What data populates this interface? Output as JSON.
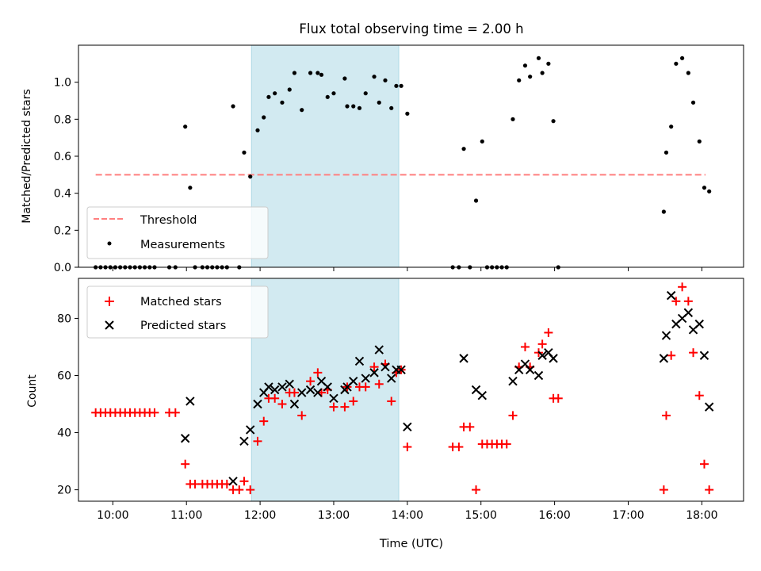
{
  "chart_data": [
    {
      "type": "scatter",
      "title": "Flux total observing time = 2.00 h",
      "xlabel": "",
      "ylabel": "Matched/Predicted stars",
      "ylim": [
        0,
        1.2
      ],
      "yticks": [
        "0.0",
        "0.2",
        "0.4",
        "0.6",
        "0.8",
        "1.0"
      ],
      "xlim": [
        "09:32",
        "18:34"
      ],
      "shaded_interval": [
        "11:53",
        "13:53"
      ],
      "grid": false,
      "legend_position": "lower-left",
      "threshold": {
        "name": "Threshold",
        "value": 0.5,
        "x_range": [
          "09:46",
          "18:03"
        ],
        "color": "#ff7f7f"
      },
      "series": [
        {
          "name": "Measurements",
          "color": "#000000",
          "points": [
            [
              "09:46",
              0
            ],
            [
              "09:50",
              0
            ],
            [
              "09:54",
              0
            ],
            [
              "09:58",
              0
            ],
            [
              "10:02",
              0
            ],
            [
              "10:06",
              0
            ],
            [
              "10:10",
              0
            ],
            [
              "10:14",
              0
            ],
            [
              "10:18",
              0
            ],
            [
              "10:22",
              0
            ],
            [
              "10:26",
              0
            ],
            [
              "10:30",
              0
            ],
            [
              "10:34",
              0
            ],
            [
              "10:46",
              0
            ],
            [
              "10:51",
              0
            ],
            [
              "10:59",
              0.76
            ],
            [
              "11:03",
              0.43
            ],
            [
              "11:07",
              0
            ],
            [
              "11:13",
              0
            ],
            [
              "11:17",
              0
            ],
            [
              "11:21",
              0
            ],
            [
              "11:25",
              0
            ],
            [
              "11:29",
              0
            ],
            [
              "11:33",
              0
            ],
            [
              "11:38",
              0.87
            ],
            [
              "11:43",
              0
            ],
            [
              "11:47",
              0.62
            ],
            [
              "11:52",
              0.49
            ],
            [
              "11:58",
              0.74
            ],
            [
              "12:03",
              0.81
            ],
            [
              "12:07",
              0.92
            ],
            [
              "12:12",
              0.94
            ],
            [
              "12:18",
              0.89
            ],
            [
              "12:24",
              0.96
            ],
            [
              "12:28",
              1.05
            ],
            [
              "12:34",
              0.85
            ],
            [
              "12:41",
              1.05
            ],
            [
              "12:47",
              1.05
            ],
            [
              "12:50",
              1.04
            ],
            [
              "12:55",
              0.92
            ],
            [
              "13:00",
              0.94
            ],
            [
              "13:09",
              1.02
            ],
            [
              "13:11",
              0.87
            ],
            [
              "13:16",
              0.87
            ],
            [
              "13:21",
              0.86
            ],
            [
              "13:26",
              0.94
            ],
            [
              "13:33",
              1.03
            ],
            [
              "13:37",
              0.89
            ],
            [
              "13:42",
              1.01
            ],
            [
              "13:47",
              0.86
            ],
            [
              "13:51",
              0.98
            ],
            [
              "13:55",
              0.98
            ],
            [
              "14:00",
              0.83
            ],
            [
              "14:37",
              0
            ],
            [
              "14:42",
              0
            ],
            [
              "14:46",
              0.64
            ],
            [
              "14:51",
              0
            ],
            [
              "14:56",
              0.36
            ],
            [
              "15:01",
              0.68
            ],
            [
              "15:05",
              0
            ],
            [
              "15:09",
              0
            ],
            [
              "15:13",
              0
            ],
            [
              "15:17",
              0
            ],
            [
              "15:21",
              0
            ],
            [
              "15:26",
              0.8
            ],
            [
              "15:31",
              1.01
            ],
            [
              "15:36",
              1.09
            ],
            [
              "15:40",
              1.03
            ],
            [
              "15:47",
              1.13
            ],
            [
              "15:50",
              1.05
            ],
            [
              "15:55",
              1.1
            ],
            [
              "15:59",
              0.79
            ],
            [
              "16:03",
              0
            ],
            [
              "17:29",
              0.3
            ],
            [
              "17:31",
              0.62
            ],
            [
              "17:35",
              0.76
            ],
            [
              "17:39",
              1.1
            ],
            [
              "17:44",
              1.13
            ],
            [
              "17:49",
              1.05
            ],
            [
              "17:53",
              0.89
            ],
            [
              "17:58",
              0.68
            ],
            [
              "18:02",
              0.43
            ],
            [
              "18:06",
              0.41
            ]
          ]
        }
      ],
      "legend": [
        {
          "label": "Threshold",
          "marker": "dashed-line",
          "color": "#ff7f7f"
        },
        {
          "label": "Measurements",
          "marker": "dot",
          "color": "#000000"
        }
      ]
    },
    {
      "type": "scatter",
      "title": "",
      "xlabel": "Time (UTC)",
      "ylabel": "Count",
      "ylim": [
        16,
        94
      ],
      "yticks": [
        "20",
        "40",
        "60",
        "80"
      ],
      "xticks": [
        "10:00",
        "11:00",
        "12:00",
        "13:00",
        "14:00",
        "15:00",
        "16:00",
        "17:00",
        "18:00"
      ],
      "xlim": [
        "09:32",
        "18:34"
      ],
      "shaded_interval": [
        "11:53",
        "13:53"
      ],
      "grid": false,
      "legend_position": "top-left",
      "series": [
        {
          "name": "Matched stars",
          "marker": "plus",
          "color": "#ff0000",
          "points": [
            [
              "09:46",
              47
            ],
            [
              "09:50",
              47
            ],
            [
              "09:54",
              47
            ],
            [
              "09:58",
              47
            ],
            [
              "10:02",
              47
            ],
            [
              "10:06",
              47
            ],
            [
              "10:10",
              47
            ],
            [
              "10:14",
              47
            ],
            [
              "10:18",
              47
            ],
            [
              "10:22",
              47
            ],
            [
              "10:26",
              47
            ],
            [
              "10:30",
              47
            ],
            [
              "10:34",
              47
            ],
            [
              "10:46",
              47
            ],
            [
              "10:51",
              47
            ],
            [
              "10:59",
              29
            ],
            [
              "11:03",
              22
            ],
            [
              "11:07",
              22
            ],
            [
              "11:13",
              22
            ],
            [
              "11:17",
              22
            ],
            [
              "11:21",
              22
            ],
            [
              "11:25",
              22
            ],
            [
              "11:29",
              22
            ],
            [
              "11:33",
              22
            ],
            [
              "11:38",
              20
            ],
            [
              "11:43",
              20
            ],
            [
              "11:47",
              23
            ],
            [
              "11:52",
              20
            ],
            [
              "11:58",
              37
            ],
            [
              "12:03",
              44
            ],
            [
              "12:07",
              52
            ],
            [
              "12:12",
              52
            ],
            [
              "12:18",
              50
            ],
            [
              "12:24",
              54
            ],
            [
              "12:28",
              54
            ],
            [
              "12:34",
              46
            ],
            [
              "12:41",
              58
            ],
            [
              "12:47",
              61
            ],
            [
              "12:50",
              54
            ],
            [
              "12:55",
              55
            ],
            [
              "13:00",
              49
            ],
            [
              "13:09",
              49
            ],
            [
              "13:11",
              56
            ],
            [
              "13:16",
              51
            ],
            [
              "13:21",
              56
            ],
            [
              "13:26",
              56
            ],
            [
              "13:33",
              63
            ],
            [
              "13:37",
              57
            ],
            [
              "13:42",
              64
            ],
            [
              "13:47",
              51
            ],
            [
              "13:51",
              61
            ],
            [
              "13:55",
              62
            ],
            [
              "14:00",
              35
            ],
            [
              "14:37",
              35
            ],
            [
              "14:42",
              35
            ],
            [
              "14:46",
              42
            ],
            [
              "14:51",
              42
            ],
            [
              "14:56",
              20
            ],
            [
              "15:01",
              36
            ],
            [
              "15:05",
              36
            ],
            [
              "15:09",
              36
            ],
            [
              "15:13",
              36
            ],
            [
              "15:17",
              36
            ],
            [
              "15:21",
              36
            ],
            [
              "15:26",
              46
            ],
            [
              "15:31",
              63
            ],
            [
              "15:36",
              70
            ],
            [
              "15:40",
              63
            ],
            [
              "15:47",
              68
            ],
            [
              "15:50",
              71
            ],
            [
              "15:55",
              75
            ],
            [
              "15:59",
              52
            ],
            [
              "16:03",
              52
            ],
            [
              "17:29",
              20
            ],
            [
              "17:31",
              46
            ],
            [
              "17:35",
              67
            ],
            [
              "17:39",
              86
            ],
            [
              "17:44",
              91
            ],
            [
              "17:49",
              86
            ],
            [
              "17:53",
              68
            ],
            [
              "17:58",
              53
            ],
            [
              "18:02",
              29
            ],
            [
              "18:06",
              20
            ]
          ]
        },
        {
          "name": "Predicted stars",
          "marker": "x",
          "color": "#000000",
          "points": [
            [
              "10:59",
              38
            ],
            [
              "11:03",
              51
            ],
            [
              "11:38",
              23
            ],
            [
              "11:47",
              37
            ],
            [
              "11:52",
              41
            ],
            [
              "11:58",
              50
            ],
            [
              "12:03",
              54
            ],
            [
              "12:07",
              56
            ],
            [
              "12:12",
              55
            ],
            [
              "12:18",
              56
            ],
            [
              "12:24",
              57
            ],
            [
              "12:28",
              50
            ],
            [
              "12:34",
              54
            ],
            [
              "12:41",
              55
            ],
            [
              "12:47",
              54
            ],
            [
              "12:50",
              58
            ],
            [
              "12:55",
              56
            ],
            [
              "13:00",
              52
            ],
            [
              "13:09",
              55
            ],
            [
              "13:11",
              56
            ],
            [
              "13:16",
              58
            ],
            [
              "13:21",
              65
            ],
            [
              "13:26",
              59
            ],
            [
              "13:33",
              61
            ],
            [
              "13:37",
              69
            ],
            [
              "13:42",
              63
            ],
            [
              "13:47",
              59
            ],
            [
              "13:51",
              62
            ],
            [
              "13:55",
              62
            ],
            [
              "14:00",
              42
            ],
            [
              "14:46",
              66
            ],
            [
              "14:56",
              55
            ],
            [
              "15:01",
              53
            ],
            [
              "15:26",
              58
            ],
            [
              "15:31",
              62
            ],
            [
              "15:36",
              64
            ],
            [
              "15:40",
              62
            ],
            [
              "15:47",
              60
            ],
            [
              "15:50",
              67
            ],
            [
              "15:55",
              68
            ],
            [
              "15:59",
              66
            ],
            [
              "17:29",
              66
            ],
            [
              "17:31",
              74
            ],
            [
              "17:35",
              88
            ],
            [
              "17:39",
              78
            ],
            [
              "17:44",
              80
            ],
            [
              "17:49",
              82
            ],
            [
              "17:53",
              76
            ],
            [
              "17:58",
              78
            ],
            [
              "18:02",
              67
            ],
            [
              "18:06",
              49
            ]
          ]
        }
      ],
      "legend": [
        {
          "label": "Matched stars",
          "marker": "plus",
          "color": "#ff0000"
        },
        {
          "label": "Predicted stars",
          "marker": "x",
          "color": "#000000"
        }
      ]
    }
  ],
  "style": {
    "shade_color": "#add8e6",
    "threshold_color": "#ff7f7f"
  }
}
